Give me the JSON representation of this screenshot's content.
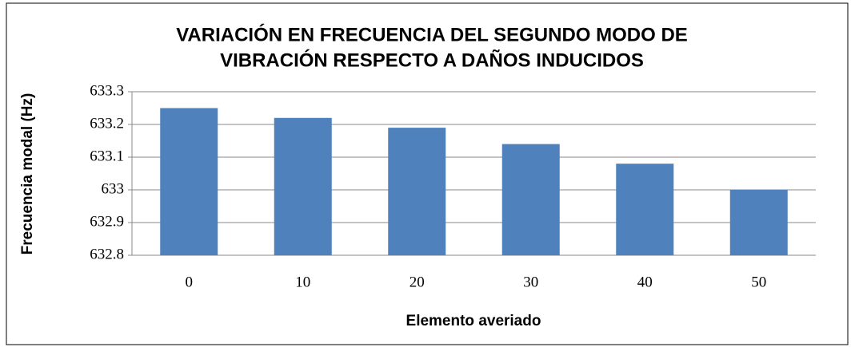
{
  "chart_data": {
    "type": "bar",
    "title": [
      "VARIACIÓN EN FRECUENCIA DEL SEGUNDO MODO DE",
      "VIBRACIÓN RESPECTO A DAÑOS INDUCIDOS"
    ],
    "x_label": "Elemento averiado",
    "y_label": "Frecuencia modal (Hz)",
    "categories": [
      "0",
      "10",
      "20",
      "30",
      "40",
      "50"
    ],
    "values": [
      633.25,
      633.22,
      633.19,
      633.14,
      633.08,
      633.0
    ],
    "color": "#4f81bd",
    "ylim": [
      632.8,
      633.3
    ],
    "yticks": [
      632.8,
      632.9,
      633,
      633.1,
      633.2,
      633.3
    ],
    "grid": true
  }
}
